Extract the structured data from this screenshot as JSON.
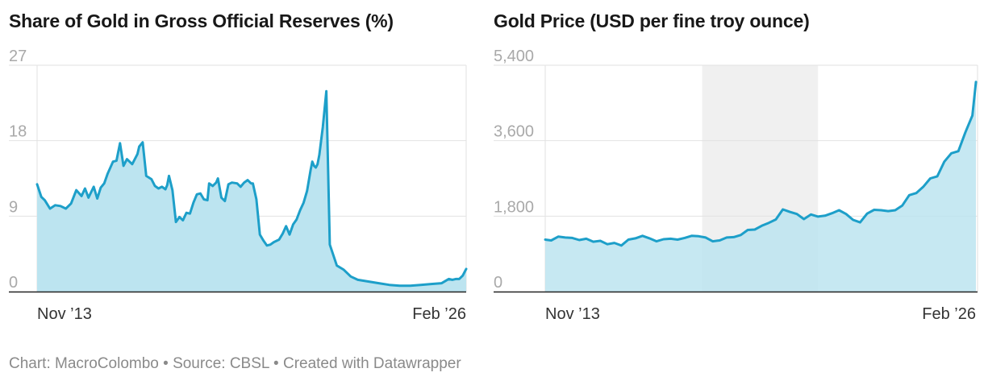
{
  "footer": {
    "chart_credit": "Chart: MacroColombo",
    "source": "Source: CBSL",
    "created_with": "Created with Datawrapper",
    "separator": " • "
  },
  "colors": {
    "line": "#1d9fc9",
    "area": "#bce4f0",
    "shade": "#f0f0f0",
    "grid": "#e2e2e2",
    "axis": "#222222"
  },
  "chart_data": [
    {
      "type": "area",
      "title": "Share of Gold in Gross Official Reserves (%)",
      "ylim": [
        0,
        27
      ],
      "yticks": [
        "0",
        "9",
        "18",
        "27"
      ],
      "xtick_labels": [
        "Nov ’13",
        "Feb ’26"
      ],
      "x_range": [
        "2013-11",
        "2026-02"
      ],
      "grid": true,
      "series": [
        {
          "x": [
            2013.83,
            2013.95,
            2014.05,
            2014.2,
            2014.35,
            2014.5,
            2014.65,
            2014.8,
            2014.95,
            2015.1,
            2015.2,
            2015.3,
            2015.45,
            2015.55,
            2015.65,
            2015.75,
            2015.85,
            2016.0,
            2016.1,
            2016.2,
            2016.3,
            2016.4,
            2016.55,
            2016.7,
            2016.75,
            2016.85,
            2016.95,
            2017.1,
            2017.2,
            2017.3,
            2017.4,
            2017.5,
            2017.55,
            2017.6,
            2017.7,
            2017.8,
            2017.9,
            2018.0,
            2018.1,
            2018.2,
            2018.3,
            2018.4,
            2018.5,
            2018.6,
            2018.7,
            2018.75,
            2018.85,
            2018.95,
            2019.0,
            2019.1,
            2019.2,
            2019.3,
            2019.4,
            2019.55,
            2019.65,
            2019.75,
            2019.85,
            2019.95,
            2020.0,
            2020.1,
            2020.2,
            2020.3,
            2020.4,
            2020.5,
            2020.6,
            2020.75,
            2020.85,
            2020.95,
            2021.05,
            2021.15,
            2021.25,
            2021.35,
            2021.45,
            2021.55,
            2021.65,
            2021.7,
            2021.75,
            2021.8,
            2021.85,
            2021.9,
            2022.0,
            2022.1,
            2022.2,
            2022.4,
            2022.6,
            2022.8,
            2023.0,
            2023.3,
            2023.6,
            2023.9,
            2024.2,
            2024.5,
            2024.8,
            2025.1,
            2025.4,
            2025.6,
            2025.7,
            2025.8,
            2025.9,
            2026.0,
            2026.1
          ],
          "values": [
            12.8,
            11.3,
            10.9,
            9.9,
            10.3,
            10.2,
            9.9,
            10.5,
            12.1,
            11.4,
            12.3,
            11.2,
            12.5,
            11.1,
            12.4,
            12.9,
            14.1,
            15.5,
            15.6,
            17.7,
            15.0,
            15.8,
            15.2,
            16.4,
            17.3,
            17.8,
            13.8,
            13.4,
            12.6,
            12.3,
            12.5,
            12.2,
            12.7,
            13.8,
            12.1,
            8.3,
            8.9,
            8.5,
            9.4,
            9.3,
            10.6,
            11.6,
            11.7,
            11.0,
            10.9,
            12.9,
            12.6,
            13.0,
            13.5,
            11.2,
            10.8,
            12.8,
            13.0,
            12.9,
            12.5,
            13.0,
            13.3,
            12.9,
            12.9,
            11.0,
            6.8,
            6.1,
            5.5,
            5.6,
            5.9,
            6.2,
            6.9,
            7.8,
            6.8,
            8.0,
            8.6,
            9.7,
            10.6,
            12.0,
            14.5,
            15.5,
            15.0,
            14.8,
            15.2,
            16.3,
            19.6,
            23.9,
            5.6,
            3.1,
            2.6,
            1.8,
            1.4,
            1.2,
            1.0,
            0.8,
            0.7,
            0.7,
            0.8,
            0.9,
            1.0,
            1.5,
            1.4,
            1.5,
            1.5,
            1.9,
            2.7
          ]
        }
      ]
    },
    {
      "type": "area",
      "title": "Gold Price (USD per fine troy ounce)",
      "ylim": [
        0,
        5400
      ],
      "yticks": [
        "0",
        "1,800",
        "3,600",
        "5,400"
      ],
      "xtick_labels": [
        "Nov ’13",
        "Feb ’26"
      ],
      "x_range": [
        "2013-11",
        "2026-02"
      ],
      "grid": true,
      "shaded_period": [
        2018.3,
        2021.6
      ],
      "series": [
        {
          "x": [
            2013.83,
            2014.0,
            2014.2,
            2014.4,
            2014.6,
            2014.8,
            2015.0,
            2015.2,
            2015.4,
            2015.6,
            2015.8,
            2016.0,
            2016.2,
            2016.4,
            2016.6,
            2016.8,
            2017.0,
            2017.2,
            2017.4,
            2017.6,
            2017.8,
            2018.0,
            2018.2,
            2018.4,
            2018.6,
            2018.8,
            2019.0,
            2019.2,
            2019.4,
            2019.6,
            2019.8,
            2020.0,
            2020.2,
            2020.4,
            2020.6,
            2020.8,
            2021.0,
            2021.2,
            2021.4,
            2021.6,
            2021.8,
            2022.0,
            2022.2,
            2022.4,
            2022.6,
            2022.8,
            2023.0,
            2023.2,
            2023.4,
            2023.6,
            2023.8,
            2024.0,
            2024.2,
            2024.4,
            2024.6,
            2024.8,
            2025.0,
            2025.2,
            2025.4,
            2025.6,
            2025.8,
            2026.0,
            2026.1
          ],
          "values": [
            1240,
            1220,
            1310,
            1290,
            1280,
            1230,
            1260,
            1190,
            1210,
            1130,
            1160,
            1100,
            1240,
            1270,
            1330,
            1270,
            1200,
            1250,
            1260,
            1240,
            1280,
            1330,
            1320,
            1290,
            1200,
            1220,
            1290,
            1300,
            1350,
            1470,
            1480,
            1570,
            1640,
            1720,
            1960,
            1900,
            1850,
            1730,
            1840,
            1790,
            1810,
            1870,
            1940,
            1850,
            1710,
            1650,
            1860,
            1950,
            1940,
            1920,
            1940,
            2050,
            2300,
            2350,
            2500,
            2700,
            2750,
            3100,
            3300,
            3350,
            3800,
            4200,
            5000
          ]
        }
      ]
    }
  ]
}
